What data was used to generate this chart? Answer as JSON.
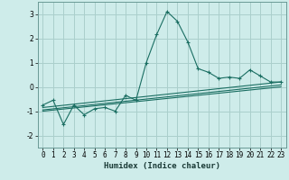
{
  "xlabel": "Humidex (Indice chaleur)",
  "background_color": "#ceecea",
  "grid_color": "#aacfcc",
  "line_color": "#1a6e62",
  "x_values": [
    0,
    1,
    2,
    3,
    4,
    5,
    6,
    7,
    8,
    9,
    10,
    11,
    12,
    13,
    14,
    15,
    16,
    17,
    18,
    19,
    20,
    21,
    22,
    23
  ],
  "y_main": [
    -0.75,
    -0.55,
    -1.55,
    -0.75,
    -1.15,
    -0.9,
    -0.85,
    -1.0,
    -0.35,
    -0.55,
    1.0,
    2.15,
    3.1,
    2.7,
    1.85,
    0.75,
    0.6,
    0.35,
    0.4,
    0.35,
    0.7,
    0.45,
    0.2,
    0.2
  ],
  "trend1_x": [
    0,
    23
  ],
  "trend1_y": [
    -0.85,
    0.2
  ],
  "trend2_x": [
    0,
    23
  ],
  "trend2_y": [
    -0.95,
    0.08
  ],
  "trend3_x": [
    0,
    23
  ],
  "trend3_y": [
    -1.0,
    0.0
  ],
  "ylim": [
    -2.5,
    3.5
  ],
  "xlim": [
    -0.5,
    23.5
  ],
  "yticks": [
    -2,
    -1,
    0,
    1,
    2,
    3
  ],
  "xticks": [
    0,
    1,
    2,
    3,
    4,
    5,
    6,
    7,
    8,
    9,
    10,
    11,
    12,
    13,
    14,
    15,
    16,
    17,
    18,
    19,
    20,
    21,
    22,
    23
  ],
  "tick_fontsize": 5.5,
  "xlabel_fontsize": 6.5
}
